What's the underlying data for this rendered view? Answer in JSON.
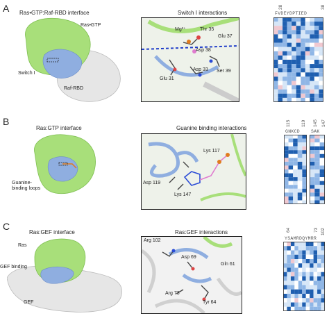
{
  "panels": [
    {
      "letter": "A",
      "left_title": "Ras•GTP:Raf-RBD interface",
      "left_labels": [
        "Ras•GTP",
        "Switch I",
        "Raf-RBD"
      ],
      "mid_title": "Switch I interactions",
      "mid_labels": [
        "Mg²⁺",
        "Thr 35",
        "Glu 37",
        "Asp 38",
        "Asp 33",
        "Ser 39",
        "Glu 31"
      ],
      "seq": "FVDEYDPTIED",
      "seq_nums": [
        "28",
        "38"
      ]
    },
    {
      "letter": "B",
      "left_title": "Ras:GTP interface",
      "left_labels": [
        "Guanine-binding loops"
      ],
      "mid_title": "Guanine binding interactions",
      "mid_labels": [
        "Lys 117",
        "Asp 119",
        "Lys 147"
      ],
      "seq": "GNKCD",
      "seq2": "SAK",
      "seq_nums": [
        "115",
        "119",
        "145",
        "147"
      ]
    },
    {
      "letter": "C",
      "left_title": "Ras:GEF interface",
      "left_labels": [
        "Ras",
        "GEF binding",
        "GEF"
      ],
      "mid_title": "Ras:GEF interactions",
      "mid_labels": [
        "Arg 102",
        "Asp 69",
        "Gln 61",
        "Arg 73",
        "Tyr 64"
      ],
      "seq": "YSAMRDQYMRR",
      "seq_nums": [
        "64",
        "73",
        "102"
      ]
    }
  ],
  "colors": {
    "ras_green": "#a8df7a",
    "interface_blue": "#8faee0",
    "raf_gray": "#e6e6e6",
    "heat_dark": "#1f5fb0",
    "heat_mid": "#8fb6e6",
    "heat_light": "#d6e6f7",
    "heat_pink": "#f0c8d0"
  }
}
